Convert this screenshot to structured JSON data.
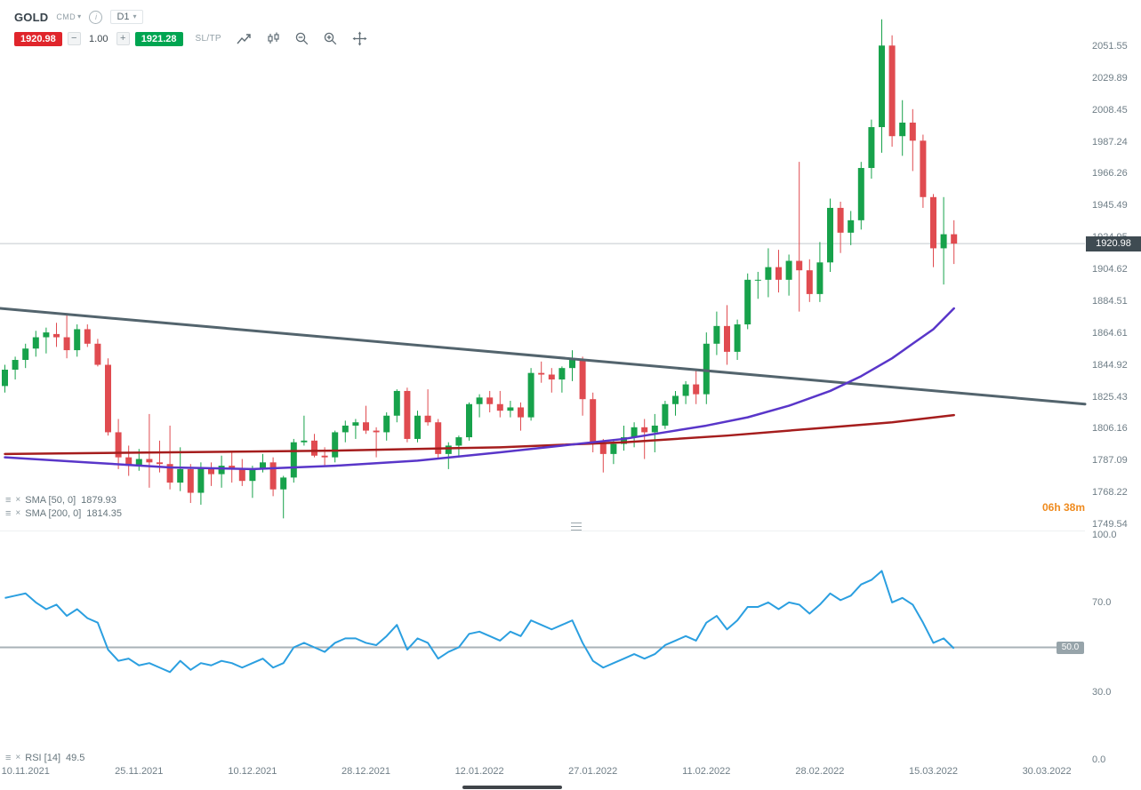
{
  "toolbar": {
    "symbol": "GOLD",
    "market": "CMD",
    "timeframe": "D1",
    "sell_price": "1920.98",
    "volume": "1.00",
    "buy_price": "1921.28",
    "sltp_label": "SL/TP",
    "minus_label": "−",
    "plus_label": "+"
  },
  "countdown": "06h 38m",
  "colors": {
    "candle_up": "#17a24b",
    "candle_down": "#e04b50",
    "sell_badge": "#e0252b",
    "buy_badge": "#00a551",
    "price_line": "#c3c9cd",
    "price_badge_bg": "#3f4b52",
    "rsi_level": "#a9b2b7",
    "rsi_badge_bg": "#97a4aa",
    "axis_text": "#6f7e87",
    "countdown": "#ef8b1f"
  },
  "chart_data": {
    "type": "candlestick",
    "title": "GOLD D1",
    "current_price": 1920.98,
    "current_price_label": "1920.98",
    "y_axis": {
      "scale": "log",
      "top": 2051.55,
      "bottom": 1749.54,
      "labels": [
        "2051.55",
        "2029.89",
        "2008.45",
        "1987.24",
        "1966.26",
        "1945.49",
        "1924.95",
        "1904.62",
        "1884.51",
        "1864.61",
        "1844.92",
        "1825.43",
        "1806.16",
        "1787.09",
        "1768.22",
        "1749.54"
      ]
    },
    "x_labels": [
      {
        "text": "10.11.2021",
        "i": 2
      },
      {
        "text": "25.11.2021",
        "i": 13
      },
      {
        "text": "10.12.2021",
        "i": 24
      },
      {
        "text": "28.12.2021",
        "i": 35
      },
      {
        "text": "12.01.2022",
        "i": 46
      },
      {
        "text": "27.01.2022",
        "i": 57
      },
      {
        "text": "11.02.2022",
        "i": 68
      },
      {
        "text": "28.02.2022",
        "i": 79
      },
      {
        "text": "15.03.2022",
        "i": 90
      },
      {
        "text": "30.03.2022",
        "i": 101
      }
    ],
    "candles": [
      [
        1832,
        1845,
        1828,
        1842
      ],
      [
        1842,
        1850,
        1836,
        1848
      ],
      [
        1848,
        1858,
        1843,
        1855
      ],
      [
        1855,
        1866,
        1850,
        1862
      ],
      [
        1862,
        1868,
        1852,
        1865
      ],
      [
        1864,
        1871,
        1856,
        1862
      ],
      [
        1862,
        1877,
        1849,
        1854
      ],
      [
        1854,
        1870,
        1850,
        1867
      ],
      [
        1867,
        1870,
        1856,
        1858
      ],
      [
        1858,
        1861,
        1844,
        1845
      ],
      [
        1845,
        1849,
        1802,
        1804
      ],
      [
        1804,
        1812,
        1782,
        1789
      ],
      [
        1789,
        1796,
        1778,
        1784
      ],
      [
        1784,
        1794,
        1781,
        1788
      ],
      [
        1788,
        1815,
        1771,
        1786
      ],
      [
        1786,
        1799,
        1780,
        1785
      ],
      [
        1785,
        1808,
        1770,
        1774
      ],
      [
        1774,
        1795,
        1769,
        1782
      ],
      [
        1782,
        1785,
        1762,
        1768
      ],
      [
        1768,
        1786,
        1761,
        1783
      ],
      [
        1783,
        1786,
        1772,
        1779
      ],
      [
        1779,
        1790,
        1771,
        1784
      ],
      [
        1784,
        1792,
        1774,
        1782
      ],
      [
        1782,
        1788,
        1772,
        1775
      ],
      [
        1775,
        1784,
        1765,
        1782
      ],
      [
        1782,
        1791,
        1780,
        1786
      ],
      [
        1786,
        1789,
        1766,
        1770
      ],
      [
        1770,
        1778,
        1753,
        1777
      ],
      [
        1777,
        1800,
        1774,
        1798
      ],
      [
        1798,
        1814,
        1796,
        1799
      ],
      [
        1799,
        1803,
        1789,
        1790
      ],
      [
        1790,
        1795,
        1784,
        1789
      ],
      [
        1789,
        1805,
        1786,
        1804
      ],
      [
        1804,
        1811,
        1798,
        1808
      ],
      [
        1808,
        1812,
        1800,
        1810
      ],
      [
        1810,
        1820,
        1803,
        1805
      ],
      [
        1805,
        1807,
        1789,
        1804
      ],
      [
        1804,
        1816,
        1799,
        1814
      ],
      [
        1814,
        1830,
        1810,
        1829
      ],
      [
        1829,
        1831,
        1798,
        1800
      ],
      [
        1800,
        1817,
        1798,
        1814
      ],
      [
        1814,
        1830,
        1808,
        1810
      ],
      [
        1810,
        1812,
        1788,
        1791
      ],
      [
        1791,
        1798,
        1782,
        1796
      ],
      [
        1796,
        1802,
        1789,
        1801
      ],
      [
        1801,
        1822,
        1799,
        1821
      ],
      [
        1821,
        1827,
        1813,
        1825
      ],
      [
        1825,
        1829,
        1816,
        1821
      ],
      [
        1821,
        1829,
        1813,
        1817
      ],
      [
        1817,
        1823,
        1813,
        1819
      ],
      [
        1819,
        1822,
        1805,
        1813
      ],
      [
        1813,
        1843,
        1811,
        1840
      ],
      [
        1840,
        1847,
        1834,
        1839
      ],
      [
        1839,
        1843,
        1828,
        1836
      ],
      [
        1836,
        1844,
        1828,
        1843
      ],
      [
        1843,
        1854,
        1835,
        1848
      ],
      [
        1848,
        1850,
        1814,
        1824
      ],
      [
        1824,
        1828,
        1792,
        1797
      ],
      [
        1797,
        1800,
        1780,
        1791
      ],
      [
        1791,
        1800,
        1785,
        1797
      ],
      [
        1797,
        1808,
        1793,
        1801
      ],
      [
        1801,
        1810,
        1795,
        1807
      ],
      [
        1807,
        1812,
        1788,
        1804
      ],
      [
        1804,
        1815,
        1792,
        1808
      ],
      [
        1808,
        1823,
        1806,
        1821
      ],
      [
        1821,
        1829,
        1814,
        1826
      ],
      [
        1826,
        1835,
        1821,
        1833
      ],
      [
        1833,
        1842,
        1821,
        1827
      ],
      [
        1827,
        1865,
        1821,
        1858
      ],
      [
        1858,
        1878,
        1851,
        1869
      ],
      [
        1869,
        1882,
        1845,
        1853
      ],
      [
        1853,
        1873,
        1848,
        1870
      ],
      [
        1870,
        1902,
        1867,
        1898
      ],
      [
        1898,
        1903,
        1886,
        1898
      ],
      [
        1898,
        1918,
        1887,
        1906
      ],
      [
        1906,
        1917,
        1890,
        1898
      ],
      [
        1898,
        1914,
        1888,
        1910
      ],
      [
        1910,
        1974,
        1878,
        1904
      ],
      [
        1904,
        1911,
        1884,
        1889
      ],
      [
        1889,
        1922,
        1884,
        1909
      ],
      [
        1909,
        1950,
        1903,
        1944
      ],
      [
        1944,
        1948,
        1915,
        1928
      ],
      [
        1928,
        1942,
        1920,
        1936
      ],
      [
        1936,
        1974,
        1930,
        1970
      ],
      [
        1970,
        2002,
        1963,
        1997
      ],
      [
        1997,
        2070,
        1980,
        2052
      ],
      [
        2052,
        2059,
        1984,
        1991
      ],
      [
        1991,
        2015,
        1978,
        2000
      ],
      [
        2000,
        2009,
        1968,
        1988
      ],
      [
        1988,
        1992,
        1944,
        1951
      ],
      [
        1951,
        1953,
        1906,
        1918
      ],
      [
        1918,
        1951,
        1895,
        1927
      ],
      [
        1927,
        1936,
        1908,
        1920.98
      ]
    ],
    "overlays": [
      {
        "id": "sma50",
        "name": "SMA [50, 0]",
        "value": "1879.93",
        "color": "#5936c9",
        "points": [
          [
            0,
            1789
          ],
          [
            8,
            1786
          ],
          [
            16,
            1783
          ],
          [
            24,
            1782
          ],
          [
            32,
            1784
          ],
          [
            40,
            1787
          ],
          [
            48,
            1792
          ],
          [
            54,
            1796
          ],
          [
            60,
            1800
          ],
          [
            64,
            1804
          ],
          [
            68,
            1808
          ],
          [
            72,
            1813
          ],
          [
            76,
            1820
          ],
          [
            80,
            1829
          ],
          [
            83,
            1838
          ],
          [
            86,
            1849
          ],
          [
            88,
            1858
          ],
          [
            90,
            1867
          ],
          [
            92,
            1880
          ]
        ]
      },
      {
        "id": "sma200",
        "name": "SMA [200, 0]",
        "value": "1814.35",
        "color": "#a51d1d",
        "points": [
          [
            0,
            1791
          ],
          [
            16,
            1792
          ],
          [
            32,
            1793
          ],
          [
            48,
            1795
          ],
          [
            60,
            1798
          ],
          [
            70,
            1802
          ],
          [
            80,
            1807
          ],
          [
            86,
            1810
          ],
          [
            92,
            1814.35
          ]
        ]
      }
    ],
    "trendline": {
      "start_price": 1880,
      "end_price": 1821,
      "color": "#53646d"
    },
    "rsi": {
      "name": "RSI [14]",
      "value": "49.5",
      "color": "#2b9fe0",
      "axis_labels": [
        "100.0",
        "70.0",
        "30.0",
        "0.0"
      ],
      "level": 50,
      "level_label": "50.0",
      "values": [
        72,
        73,
        74,
        70,
        67,
        69,
        64,
        67,
        63,
        61,
        49,
        44,
        45,
        42,
        43,
        41,
        39,
        44,
        40,
        43,
        42,
        44,
        43,
        41,
        43,
        45,
        41,
        43,
        50,
        52,
        50,
        48,
        52,
        54,
        54,
        52,
        51,
        55,
        60,
        49,
        54,
        52,
        45,
        48,
        50,
        56,
        57,
        55,
        53,
        57,
        55,
        62,
        60,
        58,
        60,
        62,
        52,
        44,
        41,
        43,
        45,
        47,
        45,
        47,
        51,
        53,
        55,
        53,
        61,
        64,
        58,
        62,
        68,
        68,
        70,
        67,
        70,
        69,
        65,
        69,
        74,
        71,
        73,
        78,
        80,
        84,
        70,
        72,
        69,
        61,
        52,
        54,
        49.5
      ]
    }
  }
}
